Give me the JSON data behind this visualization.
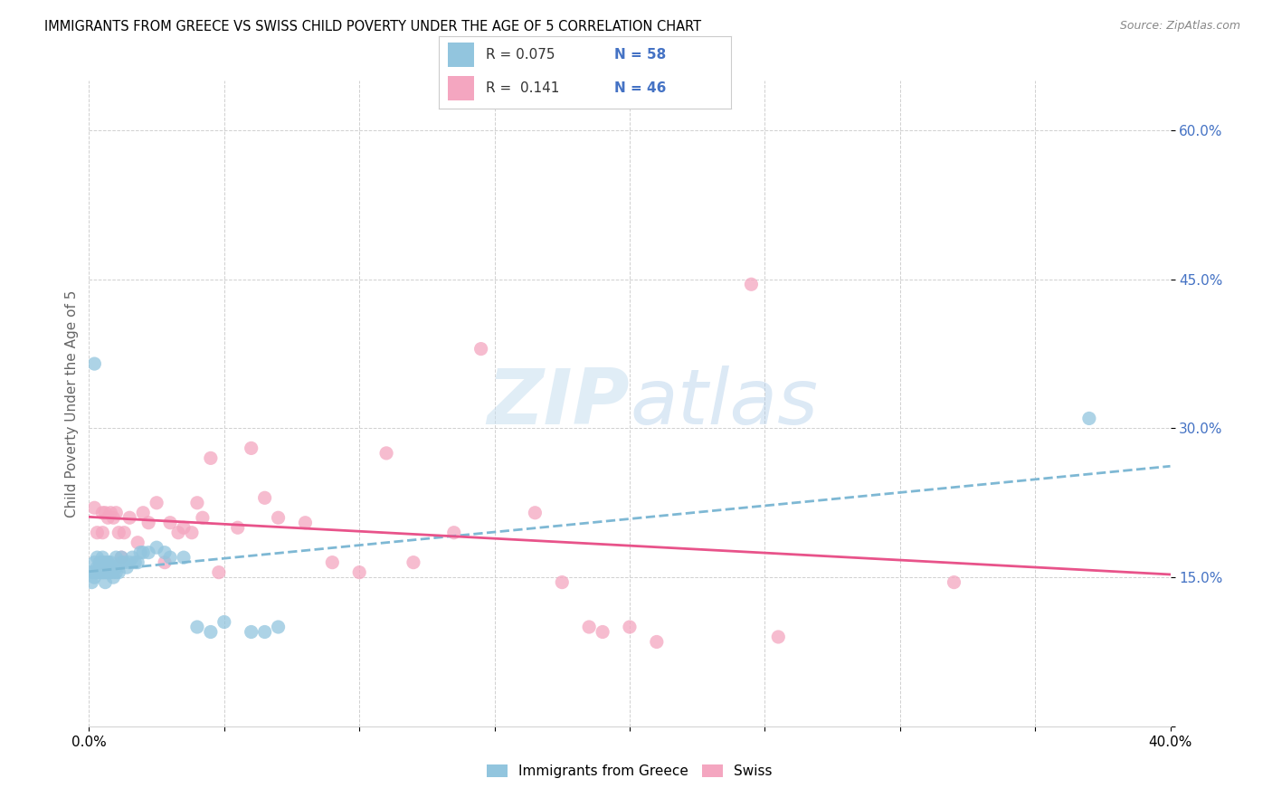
{
  "title": "IMMIGRANTS FROM GREECE VS SWISS CHILD POVERTY UNDER THE AGE OF 5 CORRELATION CHART",
  "source": "Source: ZipAtlas.com",
  "ylabel": "Child Poverty Under the Age of 5",
  "xlim": [
    0.0,
    0.4
  ],
  "ylim": [
    0.0,
    0.65
  ],
  "yticks": [
    0.0,
    0.15,
    0.3,
    0.45,
    0.6
  ],
  "ytick_labels": [
    "",
    "15.0%",
    "30.0%",
    "45.0%",
    "60.0%"
  ],
  "xticks": [
    0.0,
    0.05,
    0.1,
    0.15,
    0.2,
    0.25,
    0.3,
    0.35,
    0.4
  ],
  "xtick_labels": [
    "0.0%",
    "",
    "",
    "",
    "",
    "",
    "",
    "",
    "40.0%"
  ],
  "legend_r1": "R = 0.075",
  "legend_n1": "N = 58",
  "legend_r2": "R =  0.141",
  "legend_n2": "N = 46",
  "color_blue": "#92c5de",
  "color_pink": "#f4a6c0",
  "color_blue_line": "#7eb8d4",
  "color_pink_line": "#e8538a",
  "watermark_color": "#c8dff0",
  "greece_scatter_x": [
    0.001,
    0.001,
    0.002,
    0.002,
    0.002,
    0.003,
    0.003,
    0.003,
    0.004,
    0.004,
    0.004,
    0.004,
    0.005,
    0.005,
    0.005,
    0.005,
    0.005,
    0.006,
    0.006,
    0.006,
    0.006,
    0.006,
    0.007,
    0.007,
    0.007,
    0.008,
    0.008,
    0.008,
    0.009,
    0.009,
    0.009,
    0.01,
    0.01,
    0.01,
    0.011,
    0.012,
    0.012,
    0.013,
    0.014,
    0.015,
    0.016,
    0.017,
    0.018,
    0.019,
    0.02,
    0.022,
    0.025,
    0.028,
    0.03,
    0.035,
    0.04,
    0.045,
    0.05,
    0.06,
    0.065,
    0.07,
    0.002,
    0.37
  ],
  "greece_scatter_y": [
    0.155,
    0.145,
    0.165,
    0.155,
    0.15,
    0.16,
    0.17,
    0.155,
    0.16,
    0.155,
    0.165,
    0.16,
    0.17,
    0.16,
    0.155,
    0.165,
    0.155,
    0.16,
    0.155,
    0.165,
    0.155,
    0.145,
    0.165,
    0.155,
    0.16,
    0.165,
    0.155,
    0.16,
    0.16,
    0.155,
    0.15,
    0.17,
    0.16,
    0.155,
    0.155,
    0.165,
    0.17,
    0.165,
    0.16,
    0.165,
    0.17,
    0.165,
    0.165,
    0.175,
    0.175,
    0.175,
    0.18,
    0.175,
    0.17,
    0.17,
    0.1,
    0.095,
    0.105,
    0.095,
    0.095,
    0.1,
    0.365,
    0.31
  ],
  "swiss_scatter_x": [
    0.002,
    0.003,
    0.005,
    0.005,
    0.006,
    0.007,
    0.008,
    0.009,
    0.01,
    0.011,
    0.012,
    0.013,
    0.015,
    0.018,
    0.02,
    0.022,
    0.025,
    0.028,
    0.03,
    0.033,
    0.035,
    0.038,
    0.04,
    0.042,
    0.045,
    0.048,
    0.055,
    0.06,
    0.065,
    0.07,
    0.08,
    0.09,
    0.1,
    0.11,
    0.12,
    0.135,
    0.145,
    0.165,
    0.175,
    0.185,
    0.19,
    0.2,
    0.21,
    0.245,
    0.255,
    0.32
  ],
  "swiss_scatter_y": [
    0.22,
    0.195,
    0.215,
    0.195,
    0.215,
    0.21,
    0.215,
    0.21,
    0.215,
    0.195,
    0.17,
    0.195,
    0.21,
    0.185,
    0.215,
    0.205,
    0.225,
    0.165,
    0.205,
    0.195,
    0.2,
    0.195,
    0.225,
    0.21,
    0.27,
    0.155,
    0.2,
    0.28,
    0.23,
    0.21,
    0.205,
    0.165,
    0.155,
    0.275,
    0.165,
    0.195,
    0.38,
    0.215,
    0.145,
    0.1,
    0.095,
    0.1,
    0.085,
    0.445,
    0.09,
    0.145
  ]
}
